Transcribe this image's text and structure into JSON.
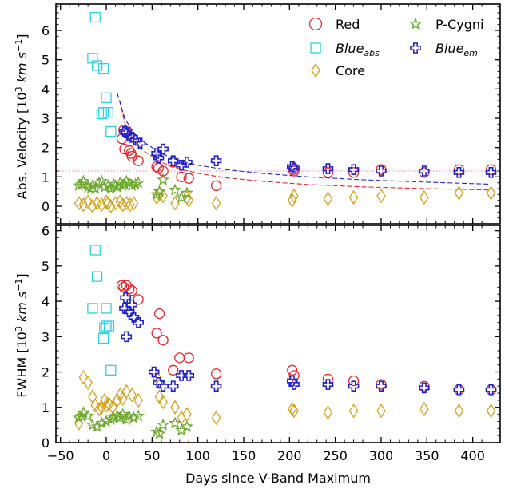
{
  "chart_data": [
    {
      "type": "scatter",
      "panel": "top",
      "ylabel": "Abs. Velocity [10^3 km s^-1]",
      "xlim": [
        -55,
        430
      ],
      "ylim": [
        -0.6,
        6.9
      ],
      "yticks": [
        "0",
        "1",
        "2",
        "3",
        "4",
        "5",
        "6"
      ],
      "reference_line": {
        "y": 1.2,
        "color": "#e377c2",
        "style": "dotted"
      },
      "legend": {
        "placement": "top-right",
        "entries": [
          {
            "label": "Red",
            "series": "red"
          },
          {
            "label": "P-Cygni",
            "series": "pcygni"
          },
          {
            "label": "Blue",
            "sub": "abs",
            "series": "blue_abs"
          },
          {
            "label": "Blue",
            "sub": "em",
            "series": "blue_em"
          },
          {
            "label": "Core",
            "series": "core"
          }
        ]
      },
      "series": [
        {
          "name": "Red",
          "key": "red",
          "marker": "circle",
          "color": "#e8262a",
          "points": [
            [
              17,
              2.3
            ],
            [
              19,
              2.6
            ],
            [
              20,
              1.95
            ],
            [
              22,
              2.55
            ],
            [
              25,
              1.9
            ],
            [
              27,
              1.8
            ],
            [
              28,
              1.7
            ],
            [
              35,
              1.55
            ],
            [
              55,
              1.35
            ],
            [
              57,
              1.3
            ],
            [
              62,
              1.2
            ],
            [
              73,
              1.5
            ],
            [
              82,
              1.0
            ],
            [
              90,
              0.95
            ],
            [
              120,
              0.7
            ],
            [
              204,
              1.25
            ],
            [
              205,
              1.2
            ],
            [
              242,
              1.15
            ],
            [
              270,
              1.15
            ],
            [
              300,
              1.25
            ],
            [
              347,
              1.15
            ],
            [
              385,
              1.25
            ],
            [
              420,
              1.25
            ]
          ]
        },
        {
          "name": "Blue_abs",
          "key": "blue_abs",
          "marker": "square",
          "color": "#2ad3e0",
          "points": [
            [
              -12,
              6.45
            ],
            [
              -15,
              5.05
            ],
            [
              -10,
              4.8
            ],
            [
              -3,
              4.7
            ],
            [
              -5,
              3.15
            ],
            [
              -3,
              3.2
            ],
            [
              0,
              3.7
            ],
            [
              2,
              3.2
            ],
            [
              5,
              2.55
            ]
          ]
        },
        {
          "name": "Blue_em",
          "key": "blue_em",
          "marker": "cross",
          "color": "#2222cc",
          "points": [
            [
              20,
              2.55
            ],
            [
              22,
              2.5
            ],
            [
              25,
              2.4
            ],
            [
              28,
              2.35
            ],
            [
              32,
              2.25
            ],
            [
              37,
              2.15
            ],
            [
              55,
              1.8
            ],
            [
              57,
              1.65
            ],
            [
              62,
              1.95
            ],
            [
              73,
              1.55
            ],
            [
              82,
              1.4
            ],
            [
              88,
              1.5
            ],
            [
              120,
              1.55
            ],
            [
              203,
              1.35
            ],
            [
              205,
              1.3
            ],
            [
              242,
              1.28
            ],
            [
              270,
              1.25
            ],
            [
              300,
              1.2
            ],
            [
              347,
              1.2
            ],
            [
              385,
              1.15
            ],
            [
              420,
              1.15
            ]
          ]
        },
        {
          "name": "Core",
          "key": "core",
          "marker": "diamond",
          "color": "#d6a11a",
          "points": [
            [
              -30,
              0.1
            ],
            [
              -25,
              0.05
            ],
            [
              -20,
              0.15
            ],
            [
              -15,
              0.0
            ],
            [
              -10,
              0.1
            ],
            [
              -5,
              0.05
            ],
            [
              0,
              0.15
            ],
            [
              2,
              0.1
            ],
            [
              5,
              0.0
            ],
            [
              10,
              0.1
            ],
            [
              15,
              0.15
            ],
            [
              18,
              0.05
            ],
            [
              22,
              0.1
            ],
            [
              26,
              0.05
            ],
            [
              30,
              0.1
            ],
            [
              55,
              0.3
            ],
            [
              58,
              0.4
            ],
            [
              62,
              0.35
            ],
            [
              75,
              0.1
            ],
            [
              88,
              0.3
            ],
            [
              90,
              0.2
            ],
            [
              120,
              0.1
            ],
            [
              203,
              0.2
            ],
            [
              205,
              0.35
            ],
            [
              242,
              0.25
            ],
            [
              270,
              0.3
            ],
            [
              300,
              0.35
            ],
            [
              347,
              0.3
            ],
            [
              385,
              0.45
            ],
            [
              420,
              0.45
            ]
          ]
        },
        {
          "name": "P-Cygni",
          "key": "pcygni",
          "marker": "star",
          "color": "#6aa82c",
          "points": [
            [
              -30,
              0.7
            ],
            [
              -27,
              0.75
            ],
            [
              -25,
              0.85
            ],
            [
              -20,
              0.65
            ],
            [
              -17,
              0.6
            ],
            [
              -15,
              0.7
            ],
            [
              -12,
              0.6
            ],
            [
              -8,
              0.8
            ],
            [
              -5,
              0.85
            ],
            [
              -2,
              0.65
            ],
            [
              2,
              0.7
            ],
            [
              5,
              0.6
            ],
            [
              8,
              0.75
            ],
            [
              10,
              0.7
            ],
            [
              12,
              0.65
            ],
            [
              15,
              0.8
            ],
            [
              18,
              0.7
            ],
            [
              20,
              0.75
            ],
            [
              22,
              0.85
            ],
            [
              25,
              0.8
            ],
            [
              28,
              0.7
            ],
            [
              32,
              0.75
            ],
            [
              35,
              0.8
            ],
            [
              55,
              0.4
            ],
            [
              58,
              0.5
            ],
            [
              62,
              0.9
            ],
            [
              75,
              0.55
            ],
            [
              82,
              0.3
            ],
            [
              88,
              0.45
            ]
          ]
        }
      ],
      "fits": [
        {
          "series": "red",
          "color": "#e8262a",
          "points": [
            [
              15,
              3.6
            ],
            [
              20,
              2.85
            ],
            [
              30,
              2.25
            ],
            [
              40,
              1.9
            ],
            [
              60,
              1.5
            ],
            [
              80,
              1.27
            ],
            [
              100,
              1.12
            ],
            [
              130,
              0.97
            ],
            [
              170,
              0.85
            ],
            [
              220,
              0.74
            ],
            [
              280,
              0.66
            ],
            [
              350,
              0.6
            ],
            [
              420,
              0.55
            ]
          ]
        },
        {
          "series": "blue_em",
          "color": "#2222cc",
          "points": [
            [
              12,
              3.85
            ],
            [
              20,
              3.0
            ],
            [
              30,
              2.5
            ],
            [
              40,
              2.2
            ],
            [
              60,
              1.8
            ],
            [
              80,
              1.55
            ],
            [
              100,
              1.4
            ],
            [
              130,
              1.25
            ],
            [
              170,
              1.12
            ],
            [
              220,
              1.0
            ],
            [
              280,
              0.9
            ],
            [
              350,
              0.82
            ],
            [
              420,
              0.75
            ]
          ]
        }
      ]
    },
    {
      "type": "scatter",
      "panel": "bottom",
      "xlabel": "Days since V-Band Maximum",
      "ylabel": "FWHM [10^3 km s^-1]",
      "xlim": [
        -55,
        430
      ],
      "ylim": [
        0,
        6.15
      ],
      "xticks": [
        "−50",
        "0",
        "50",
        "100",
        "150",
        "200",
        "250",
        "300",
        "350",
        "400"
      ],
      "xtick_values": [
        -50,
        0,
        50,
        100,
        150,
        200,
        250,
        300,
        350,
        400
      ],
      "yticks": [
        "0",
        "1",
        "2",
        "3",
        "4",
        "5",
        "6"
      ],
      "series": [
        {
          "name": "Red",
          "key": "red",
          "marker": "circle",
          "color": "#e8262a",
          "points": [
            [
              17,
              4.45
            ],
            [
              19,
              4.4
            ],
            [
              22,
              4.45
            ],
            [
              25,
              4.35
            ],
            [
              28,
              4.3
            ],
            [
              35,
              4.05
            ],
            [
              55,
              3.1
            ],
            [
              58,
              3.65
            ],
            [
              62,
              2.9
            ],
            [
              73,
              2.05
            ],
            [
              80,
              2.4
            ],
            [
              90,
              2.4
            ],
            [
              120,
              1.95
            ],
            [
              203,
              2.05
            ],
            [
              205,
              1.9
            ],
            [
              242,
              1.8
            ],
            [
              270,
              1.75
            ],
            [
              300,
              1.65
            ],
            [
              347,
              1.6
            ],
            [
              385,
              1.5
            ],
            [
              420,
              1.5
            ]
          ]
        },
        {
          "name": "Blue_abs",
          "key": "blue_abs",
          "marker": "square",
          "color": "#2ad3e0",
          "points": [
            [
              -12,
              5.45
            ],
            [
              -10,
              4.7
            ],
            [
              -15,
              3.8
            ],
            [
              -3,
              2.95
            ],
            [
              -2,
              3.25
            ],
            [
              0,
              3.3
            ],
            [
              0,
              3.8
            ],
            [
              3,
              3.3
            ],
            [
              5,
              2.05
            ]
          ]
        },
        {
          "name": "Blue_em",
          "key": "blue_em",
          "marker": "cross",
          "color": "#2222cc",
          "points": [
            [
              20,
              3.8
            ],
            [
              21,
              4.1
            ],
            [
              22,
              3.0
            ],
            [
              25,
              3.7
            ],
            [
              28,
              3.9
            ],
            [
              30,
              3.55
            ],
            [
              35,
              3.4
            ],
            [
              52,
              2.0
            ],
            [
              57,
              1.7
            ],
            [
              62,
              1.6
            ],
            [
              73,
              1.6
            ],
            [
              82,
              1.9
            ],
            [
              90,
              1.9
            ],
            [
              120,
              1.6
            ],
            [
              203,
              1.75
            ],
            [
              205,
              1.65
            ],
            [
              242,
              1.65
            ],
            [
              270,
              1.6
            ],
            [
              300,
              1.6
            ],
            [
              347,
              1.55
            ],
            [
              385,
              1.5
            ],
            [
              420,
              1.5
            ]
          ]
        },
        {
          "name": "Core",
          "key": "core",
          "marker": "diamond",
          "color": "#d6a11a",
          "points": [
            [
              -30,
              0.55
            ],
            [
              -25,
              1.85
            ],
            [
              -20,
              1.7
            ],
            [
              -15,
              1.3
            ],
            [
              -12,
              1.05
            ],
            [
              -8,
              0.95
            ],
            [
              -5,
              1.0
            ],
            [
              -2,
              1.2
            ],
            [
              0,
              1.05
            ],
            [
              3,
              1.1
            ],
            [
              7,
              1.0
            ],
            [
              12,
              1.2
            ],
            [
              15,
              1.35
            ],
            [
              18,
              1.25
            ],
            [
              22,
              1.45
            ],
            [
              28,
              1.35
            ],
            [
              35,
              1.2
            ],
            [
              55,
              1.85
            ],
            [
              58,
              1.3
            ],
            [
              62,
              1.15
            ],
            [
              75,
              1.0
            ],
            [
              82,
              0.7
            ],
            [
              88,
              0.8
            ],
            [
              120,
              0.7
            ],
            [
              203,
              0.95
            ],
            [
              205,
              0.9
            ],
            [
              242,
              0.85
            ],
            [
              270,
              0.9
            ],
            [
              300,
              0.9
            ],
            [
              347,
              0.95
            ],
            [
              385,
              0.9
            ],
            [
              420,
              0.9
            ]
          ]
        },
        {
          "name": "P-Cygni",
          "key": "pcygni",
          "marker": "star",
          "color": "#6aa82c",
          "points": [
            [
              -30,
              0.7
            ],
            [
              -27,
              0.75
            ],
            [
              -25,
              0.85
            ],
            [
              -20,
              0.75
            ],
            [
              -15,
              0.5
            ],
            [
              -10,
              0.45
            ],
            [
              -5,
              0.55
            ],
            [
              0,
              0.6
            ],
            [
              5,
              0.65
            ],
            [
              8,
              0.7
            ],
            [
              12,
              0.75
            ],
            [
              15,
              0.7
            ],
            [
              18,
              0.8
            ],
            [
              22,
              0.65
            ],
            [
              25,
              0.75
            ],
            [
              30,
              0.7
            ],
            [
              35,
              0.75
            ],
            [
              55,
              0.3
            ],
            [
              58,
              0.25
            ],
            [
              62,
              0.5
            ],
            [
              75,
              0.55
            ],
            [
              82,
              0.35
            ],
            [
              88,
              0.45
            ]
          ]
        }
      ]
    }
  ]
}
